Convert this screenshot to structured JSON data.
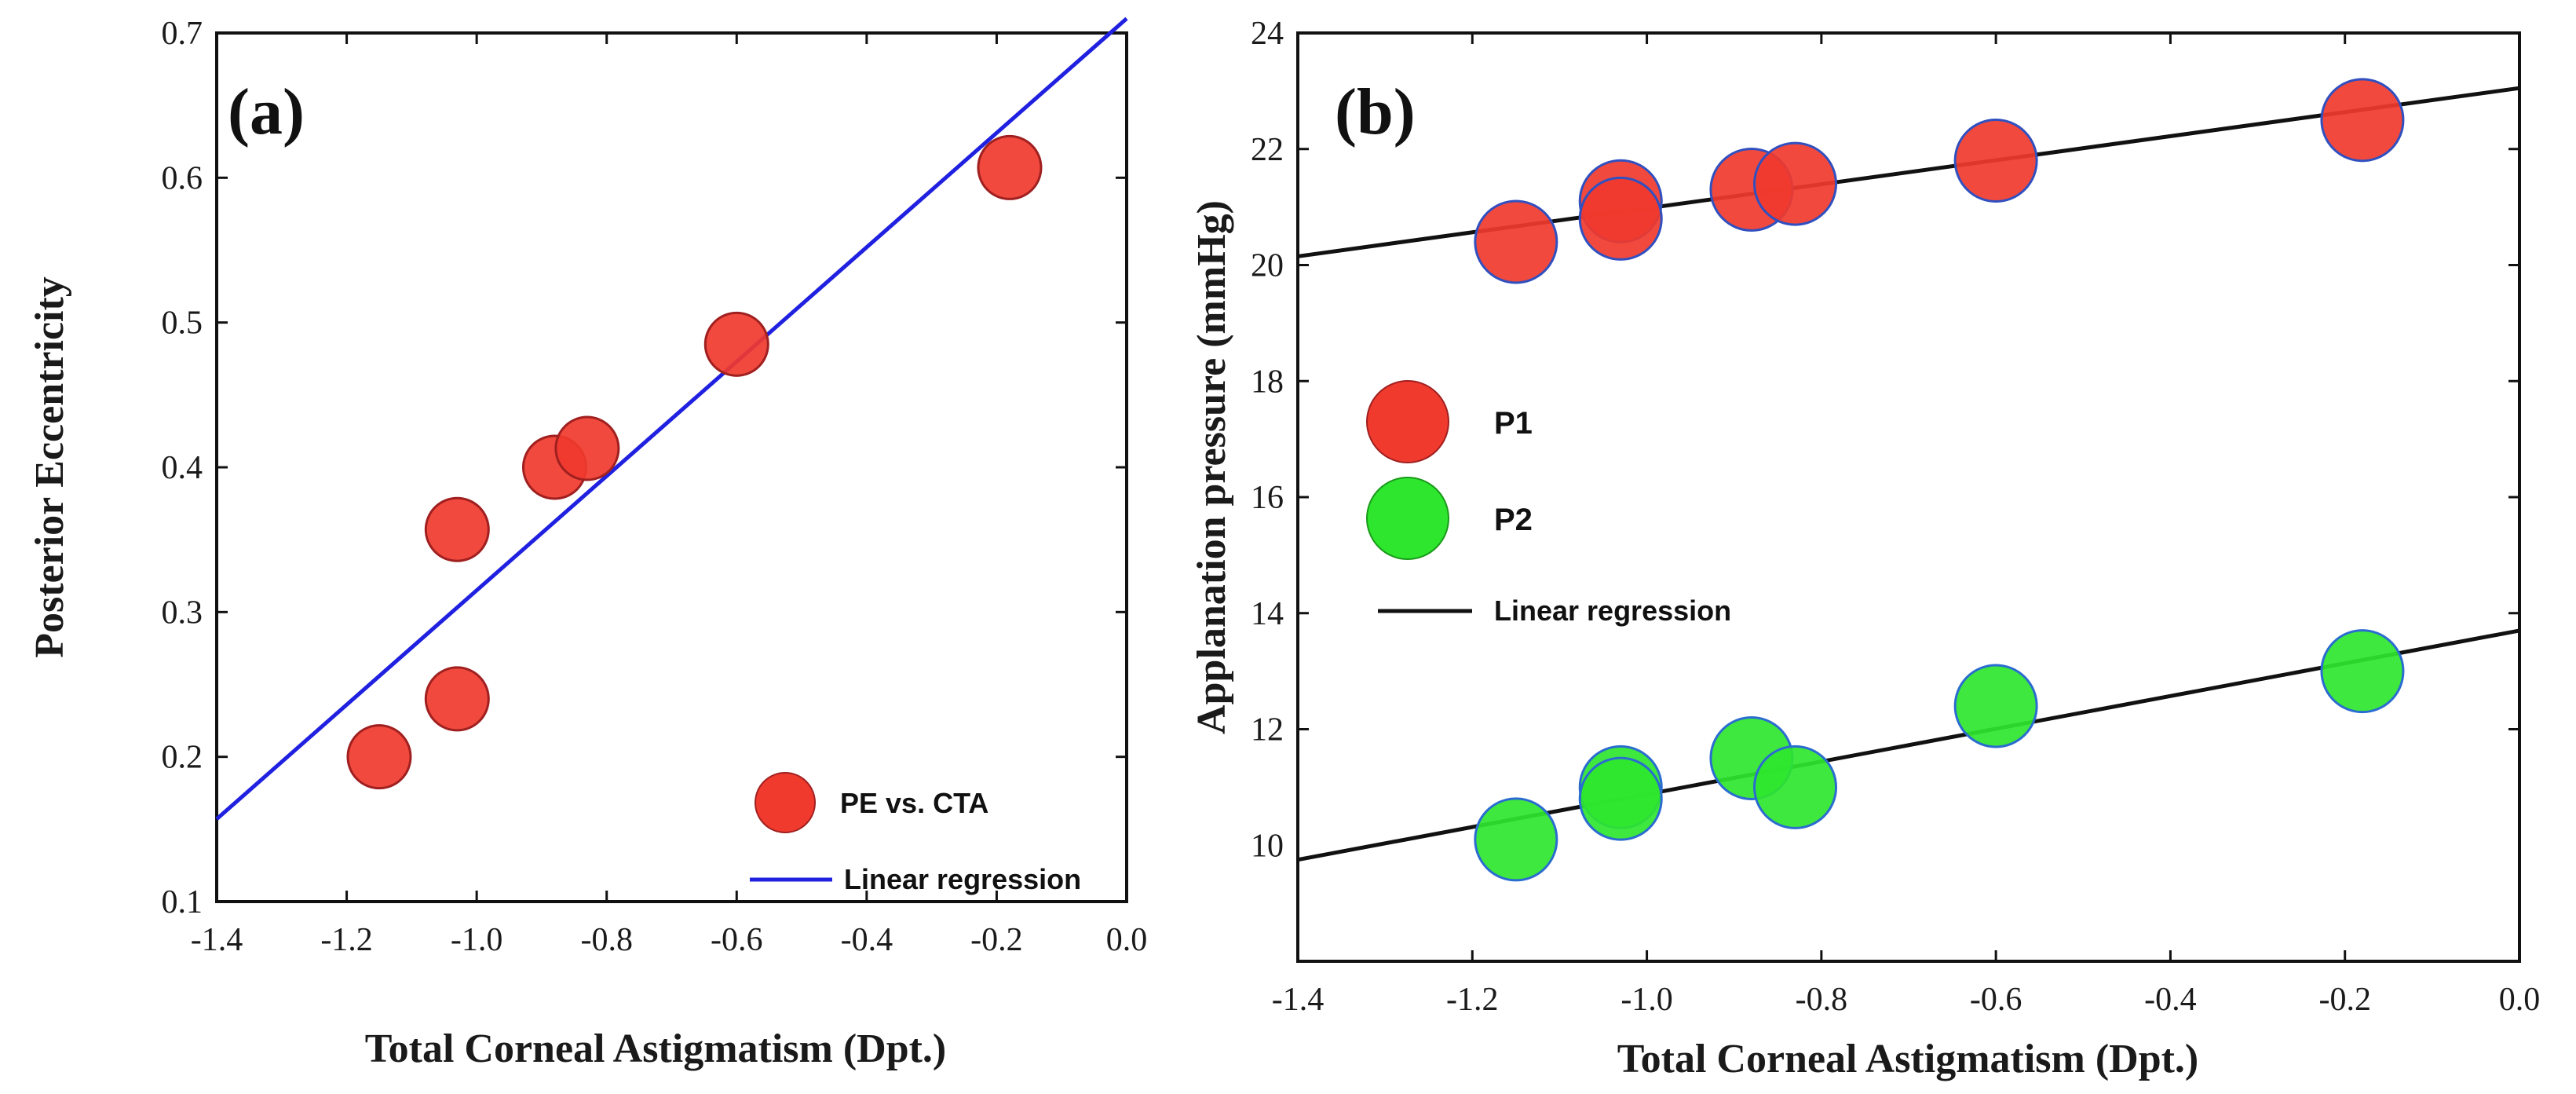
{
  "chart_data": [
    {
      "panel": "(a)",
      "type": "scatter",
      "xlabel": "Total Corneal Astigmatism (Dpt.)",
      "ylabel": "Posterior Eccentricity",
      "xlim": [
        -1.4,
        0.0
      ],
      "ylim": [
        0.1,
        0.7
      ],
      "xticks": [
        -1.4,
        -1.2,
        -1.0,
        -0.8,
        -0.6,
        -0.4,
        -0.2,
        0.0
      ],
      "xtick_labels": [
        "-1.4",
        "-1.2",
        "-1.0",
        "-0.8",
        "-0.6",
        "-0.4",
        "-0.2",
        "0.0"
      ],
      "yticks": [
        0.1,
        0.2,
        0.3,
        0.4,
        0.5,
        0.6,
        0.7
      ],
      "ytick_labels": [
        "0.1",
        "0.2",
        "0.3",
        "0.4",
        "0.5",
        "0.6",
        "0.7"
      ],
      "series": [
        {
          "name": "PE vs. CTA",
          "color": "#f03a2e",
          "points": [
            {
              "x": -1.15,
              "y": 0.2
            },
            {
              "x": -1.03,
              "y": 0.24
            },
            {
              "x": -1.03,
              "y": 0.357
            },
            {
              "x": -0.88,
              "y": 0.4
            },
            {
              "x": -0.83,
              "y": 0.413
            },
            {
              "x": -0.6,
              "y": 0.485
            },
            {
              "x": -0.18,
              "y": 0.607
            }
          ]
        }
      ],
      "regression": [
        {
          "name": "Linear regression",
          "color": "#2020e0",
          "x0": -1.4,
          "y0": 0.157,
          "x1": 0.0,
          "y1": 0.71
        }
      ],
      "legend": {
        "position": "bottom-right",
        "marker_label": "PE vs. CTA",
        "line_label": "Linear regression"
      }
    },
    {
      "panel": "(b)",
      "type": "scatter",
      "xlabel": "Total Corneal Astigmatism (Dpt.)",
      "ylabel": "Applanation pressure (mmHg)",
      "xlim": [
        -1.4,
        0.0
      ],
      "ylim": [
        8,
        24
      ],
      "xticks": [
        -1.4,
        -1.2,
        -1.0,
        -0.8,
        -0.6,
        -0.4,
        -0.2,
        0.0
      ],
      "xtick_labels": [
        "-1.4",
        "-1.2",
        "-1.0",
        "-0.8",
        "-0.6",
        "-0.4",
        "-0.2",
        "0.0"
      ],
      "yticks": [
        10,
        12,
        14,
        16,
        18,
        20,
        22,
        24
      ],
      "ytick_labels": [
        "10",
        "12",
        "14",
        "16",
        "18",
        "20",
        "22",
        "24"
      ],
      "series": [
        {
          "name": "P1",
          "color": "#f03a2e",
          "points": [
            {
              "x": -1.15,
              "y": 20.4
            },
            {
              "x": -1.03,
              "y": 21.1
            },
            {
              "x": -1.03,
              "y": 20.8
            },
            {
              "x": -0.88,
              "y": 21.3
            },
            {
              "x": -0.83,
              "y": 21.4
            },
            {
              "x": -0.6,
              "y": 21.8
            },
            {
              "x": -0.18,
              "y": 22.5
            }
          ]
        },
        {
          "name": "P2",
          "color": "#2ee62e",
          "points": [
            {
              "x": -1.15,
              "y": 10.1
            },
            {
              "x": -1.03,
              "y": 11.0
            },
            {
              "x": -1.03,
              "y": 10.8
            },
            {
              "x": -0.88,
              "y": 11.5
            },
            {
              "x": -0.83,
              "y": 11.0
            },
            {
              "x": -0.6,
              "y": 12.4
            },
            {
              "x": -0.18,
              "y": 13.0
            }
          ]
        }
      ],
      "regression": [
        {
          "name": "Linear regression",
          "color": "#111111",
          "x0": -1.4,
          "y0": 20.15,
          "x1": 0.0,
          "y1": 23.05
        },
        {
          "name": "Linear regression",
          "color": "#111111",
          "x0": -1.4,
          "y0": 9.75,
          "x1": 0.0,
          "y1": 13.7
        }
      ],
      "legend": {
        "position": "middle-left",
        "p1_label": "P1",
        "p2_label": "P2",
        "line_label": "Linear regression"
      }
    }
  ]
}
